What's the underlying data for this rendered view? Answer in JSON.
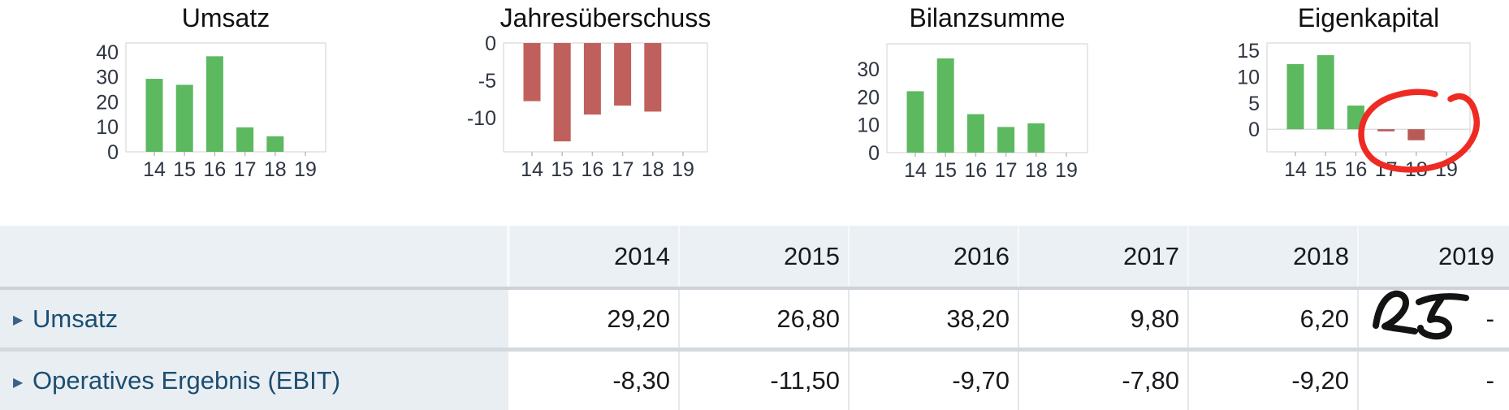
{
  "chart_data": [
    {
      "type": "bar",
      "title": "Umsatz",
      "categories": [
        "14",
        "15",
        "16",
        "17",
        "18",
        "19"
      ],
      "values": [
        29.2,
        26.8,
        38.2,
        9.8,
        6.2,
        null
      ],
      "yticks": [
        0,
        10,
        20,
        30,
        40
      ],
      "ylim": [
        0,
        43.5
      ],
      "pos_color": "#5cb95f",
      "neg_color": "#c0605d",
      "grid": false,
      "legend": "none"
    },
    {
      "type": "bar",
      "title": "Jahresüberschuss",
      "categories": [
        "14",
        "15",
        "16",
        "17",
        "18",
        "19"
      ],
      "values": [
        -7.8,
        -13.2,
        -9.6,
        -8.4,
        -9.2,
        null
      ],
      "yticks": [
        0,
        -5,
        -10
      ],
      "ylim": [
        -14.6,
        0
      ],
      "pos_color": "#5cb95f",
      "neg_color": "#c0605d",
      "grid": false,
      "legend": "none"
    },
    {
      "type": "bar",
      "title": "Bilanzsumme",
      "categories": [
        "14",
        "15",
        "16",
        "17",
        "18",
        "19"
      ],
      "values": [
        22.0,
        33.8,
        13.8,
        9.2,
        10.5,
        null
      ],
      "yticks": [
        0,
        10,
        20,
        30
      ],
      "ylim": [
        0,
        39.0
      ],
      "pos_color": "#5cb95f",
      "neg_color": "#c0605d",
      "grid": false,
      "legend": "none"
    },
    {
      "type": "bar",
      "title": "Eigenkapital",
      "categories": [
        "14",
        "15",
        "16",
        "17",
        "18",
        "19"
      ],
      "values": [
        12.4,
        14.1,
        4.5,
        -0.4,
        -2.1,
        null
      ],
      "yticks": [
        0,
        5,
        10,
        15
      ],
      "ylim": [
        -4.3,
        16.4
      ],
      "pos_color": "#5cb95f",
      "neg_color": "#b85b57",
      "grid": false,
      "legend": "none"
    }
  ],
  "table": {
    "columns": [
      "2014",
      "2015",
      "2016",
      "2017",
      "2018",
      "2019"
    ],
    "rows": [
      {
        "label": "Umsatz",
        "values": [
          "29,20",
          "26,80",
          "38,20",
          "9,80",
          "6,20",
          "-"
        ]
      },
      {
        "label": "Operatives Ergebnis (EBIT)",
        "values": [
          "-8,30",
          "-11,50",
          "-9,70",
          "-7,80",
          "-9,20",
          "-"
        ]
      }
    ],
    "expand_arrow_glyph": "▶"
  },
  "annotations": {
    "handwritten_text": "25",
    "ink_color": "#131313",
    "circle_color": "#ee2b22"
  },
  "colors": {
    "positive_bar": "#5cb95f",
    "negative_bar": "#c0605d",
    "header_bg": "#ebf0f4",
    "label_cell_bg": "#e9eef3",
    "row_label_text": "#1b4e70",
    "value_text": "#17191c",
    "chart_border": "#d9d9d9"
  }
}
